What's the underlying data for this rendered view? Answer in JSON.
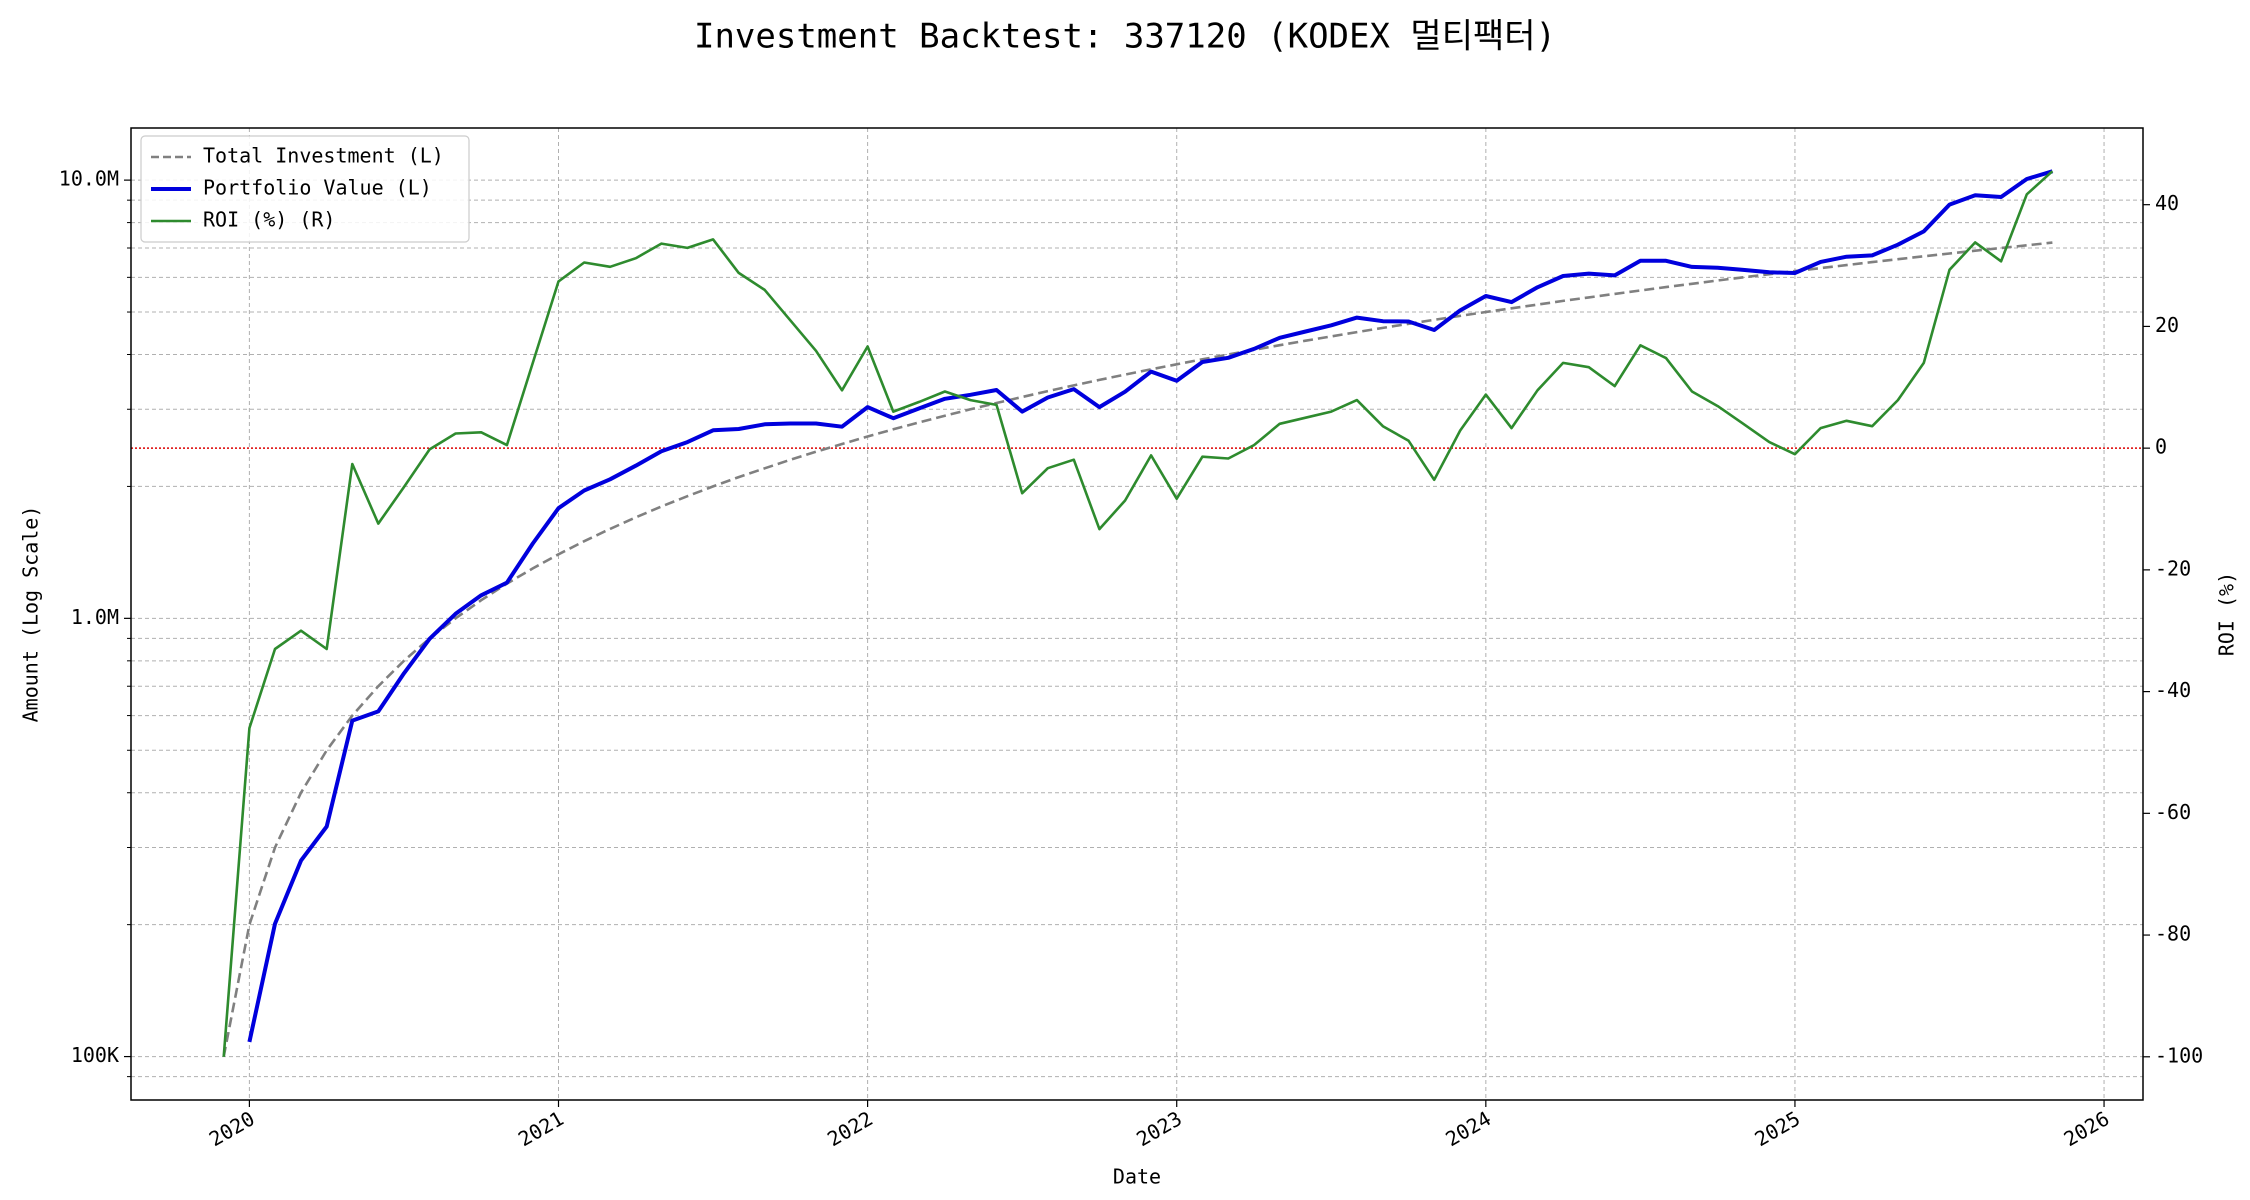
{
  "chart_data": {
    "type": "line",
    "title": "Investment Backtest: 337120 (KODEX 멀티팩터)",
    "xlabel": "Date",
    "ylabel": "Amount (Log Scale)",
    "y2label": "ROI (%)",
    "yscale": "log",
    "grid": true,
    "legend": "upper left",
    "xlim": [
      2019.617,
      2026.126
    ],
    "xticks": [
      2020,
      2021,
      2022,
      2023,
      2024,
      2025,
      2026
    ],
    "ylim": [
      79600,
      13150000
    ],
    "yticks": [
      {
        "value": 100000,
        "label": "100K"
      },
      {
        "value": 1000000,
        "label": "1.0M"
      },
      {
        "value": 10000000,
        "label": "10.0M"
      }
    ],
    "yminorticks": [
      90000,
      200000,
      300000,
      400000,
      500000,
      600000,
      700000,
      800000,
      900000,
      2000000,
      3000000,
      4000000,
      5000000,
      6000000,
      7000000,
      8000000,
      9000000
    ],
    "y2lim": [
      -107.1,
      52.6
    ],
    "y2ticks": [
      -100,
      -80,
      -60,
      -40,
      -20,
      0,
      20,
      40
    ],
    "reference_line": {
      "value": 0,
      "axis": "y2",
      "color": "#dd0000"
    },
    "x": [
      2019.917,
      2020.0,
      2020.083,
      2020.167,
      2020.25,
      2020.333,
      2020.417,
      2020.5,
      2020.583,
      2020.667,
      2020.75,
      2020.833,
      2020.917,
      2021.0,
      2021.083,
      2021.167,
      2021.25,
      2021.333,
      2021.417,
      2021.5,
      2021.583,
      2021.667,
      2021.75,
      2021.833,
      2021.917,
      2022.0,
      2022.083,
      2022.167,
      2022.25,
      2022.333,
      2022.417,
      2022.5,
      2022.583,
      2022.667,
      2022.75,
      2022.833,
      2022.917,
      2023.0,
      2023.083,
      2023.167,
      2023.25,
      2023.333,
      2023.417,
      2023.5,
      2023.583,
      2023.667,
      2023.75,
      2023.833,
      2023.917,
      2024.0,
      2024.083,
      2024.167,
      2024.25,
      2024.333,
      2024.417,
      2024.5,
      2024.583,
      2024.667,
      2024.75,
      2024.833,
      2024.917,
      2025.0,
      2025.083,
      2025.167,
      2025.25,
      2025.333,
      2025.417,
      2025.5,
      2025.583,
      2025.667,
      2025.75,
      2025.833
    ],
    "series": [
      {
        "name": "Total Investment (L)",
        "color": "#808080",
        "axis": "y",
        "style": "dashed",
        "width": 2.6,
        "values": [
          100000,
          200000,
          300000,
          400000,
          500000,
          600000,
          700000,
          800000,
          900000,
          1000000,
          1100000,
          1200000,
          1300000,
          1400000,
          1500000,
          1600000,
          1700000,
          1800000,
          1900000,
          2000000,
          2100000,
          2200000,
          2300000,
          2400000,
          2500000,
          2600000,
          2700000,
          2800000,
          2900000,
          3000000,
          3100000,
          3200000,
          3300000,
          3400000,
          3500000,
          3600000,
          3700000,
          3800000,
          3900000,
          4000000,
          4100000,
          4200000,
          4300000,
          4400000,
          4500000,
          4600000,
          4700000,
          4800000,
          4900000,
          5000000,
          5100000,
          5200000,
          5300000,
          5400000,
          5500000,
          5600000,
          5700000,
          5800000,
          5900000,
          6000000,
          6100000,
          6200000,
          6300000,
          6400000,
          6500000,
          6600000,
          6700000,
          6800000,
          6900000,
          7000000,
          7100000,
          7200000
        ]
      },
      {
        "name": "Portfolio Value (L)",
        "color": "#0000dd",
        "axis": "y",
        "style": "solid",
        "width": 4,
        "values": [
          null,
          108000,
          201000,
          280000,
          335000,
          584400,
          613200,
          748800,
          898200,
          1024000,
          1128600,
          1206000,
          1482000,
          1783600,
          1957500,
          2076800,
          2230400,
          2404800,
          2525100,
          2686000,
          2704800,
          2772000,
          2783000,
          2784000,
          2737500,
          3034200,
          2862000,
          3012800,
          3169700,
          3237000,
          3320100,
          2963200,
          3191100,
          3335400,
          3034500,
          3290400,
          3655600,
          3484600,
          3845400,
          3932000,
          4120500,
          4368000,
          4515000,
          4664000,
          4855500,
          4765600,
          4756400,
          4550400,
          5042100,
          5440000,
          5268300,
          5694000,
          6042000,
          6118200,
          6061000,
          6546400,
          6543600,
          6339400,
          6307100,
          6240000,
          6161000,
          6138000,
          6507900,
          6688000,
          6734000,
          7121400,
          7638000,
          8792400,
          9232200,
          9149000,
          10060700,
          10476000
        ]
      },
      {
        "name": "ROI (%) (R)",
        "color": "#2e8b2e",
        "axis": "y2",
        "style": "solid",
        "width": 2.6,
        "values": [
          -100,
          -46,
          -33,
          -30,
          -33,
          -2.6,
          -12.4,
          -6.4,
          -0.2,
          2.4,
          2.6,
          0.5,
          14,
          27.4,
          30.5,
          29.8,
          31.2,
          33.6,
          32.9,
          34.3,
          28.8,
          26,
          21,
          16,
          9.5,
          16.7,
          6,
          7.6,
          9.3,
          7.9,
          7.1,
          -7.4,
          -3.3,
          -1.9,
          -13.3,
          -8.6,
          -1.2,
          -8.3,
          -1.4,
          -1.7,
          0.5,
          4,
          5,
          6,
          7.9,
          3.6,
          1.2,
          -5.2,
          2.9,
          8.8,
          3.3,
          9.5,
          14,
          13.3,
          10.2,
          16.9,
          14.8,
          9.3,
          6.9,
          4,
          1,
          -1,
          3.3,
          4.5,
          3.6,
          7.9,
          14,
          29.3,
          33.8,
          30.7,
          41.7,
          45.5
        ]
      }
    ]
  }
}
